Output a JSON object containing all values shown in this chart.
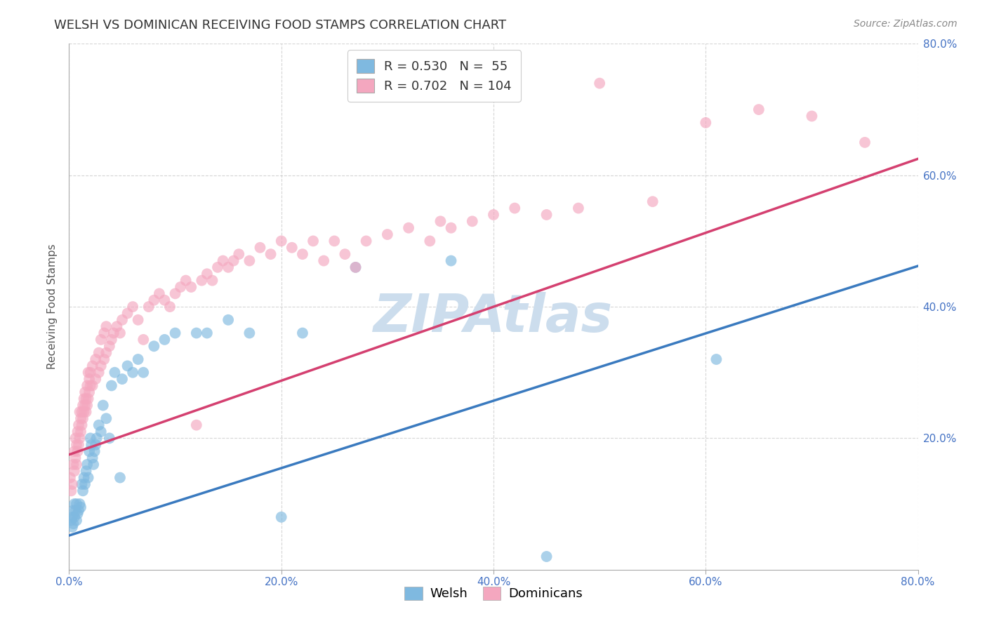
{
  "title": "WELSH VS DOMINICAN RECEIVING FOOD STAMPS CORRELATION CHART",
  "source": "Source: ZipAtlas.com",
  "ylabel": "Receiving Food Stamps",
  "watermark": "ZIPAtlas",
  "welsh": {
    "R": 0.53,
    "N": 55,
    "scatter_color": "#7fb9e0",
    "line_color": "#3a7abf",
    "line_x0": 0.0,
    "line_y0": 0.052,
    "line_x1": 0.8,
    "line_y1": 0.462,
    "points_x": [
      0.002,
      0.003,
      0.003,
      0.004,
      0.004,
      0.005,
      0.005,
      0.006,
      0.007,
      0.007,
      0.008,
      0.009,
      0.01,
      0.011,
      0.012,
      0.013,
      0.014,
      0.015,
      0.016,
      0.017,
      0.018,
      0.019,
      0.02,
      0.021,
      0.022,
      0.023,
      0.024,
      0.025,
      0.026,
      0.028,
      0.03,
      0.032,
      0.035,
      0.038,
      0.04,
      0.043,
      0.048,
      0.05,
      0.055,
      0.06,
      0.065,
      0.07,
      0.08,
      0.09,
      0.1,
      0.12,
      0.13,
      0.15,
      0.17,
      0.2,
      0.22,
      0.27,
      0.36,
      0.61,
      0.45
    ],
    "points_y": [
      0.075,
      0.08,
      0.065,
      0.07,
      0.09,
      0.08,
      0.1,
      0.09,
      0.1,
      0.075,
      0.085,
      0.09,
      0.1,
      0.095,
      0.13,
      0.12,
      0.14,
      0.13,
      0.15,
      0.16,
      0.14,
      0.18,
      0.2,
      0.19,
      0.17,
      0.16,
      0.18,
      0.19,
      0.2,
      0.22,
      0.21,
      0.25,
      0.23,
      0.2,
      0.28,
      0.3,
      0.14,
      0.29,
      0.31,
      0.3,
      0.32,
      0.3,
      0.34,
      0.35,
      0.36,
      0.36,
      0.36,
      0.38,
      0.36,
      0.08,
      0.36,
      0.46,
      0.47,
      0.32,
      0.02
    ]
  },
  "dominican": {
    "R": 0.702,
    "N": 104,
    "scatter_color": "#f4a7bf",
    "line_color": "#d44070",
    "line_x0": 0.0,
    "line_y0": 0.175,
    "line_x1": 0.8,
    "line_y1": 0.625,
    "points_x": [
      0.001,
      0.002,
      0.003,
      0.004,
      0.005,
      0.005,
      0.006,
      0.006,
      0.007,
      0.007,
      0.008,
      0.008,
      0.009,
      0.009,
      0.01,
      0.01,
      0.011,
      0.011,
      0.012,
      0.012,
      0.013,
      0.013,
      0.014,
      0.014,
      0.015,
      0.015,
      0.016,
      0.016,
      0.017,
      0.017,
      0.018,
      0.018,
      0.019,
      0.019,
      0.02,
      0.02,
      0.022,
      0.022,
      0.025,
      0.025,
      0.028,
      0.028,
      0.03,
      0.03,
      0.033,
      0.033,
      0.035,
      0.035,
      0.038,
      0.04,
      0.042,
      0.045,
      0.048,
      0.05,
      0.055,
      0.06,
      0.065,
      0.07,
      0.075,
      0.08,
      0.085,
      0.09,
      0.095,
      0.1,
      0.105,
      0.11,
      0.115,
      0.12,
      0.125,
      0.13,
      0.135,
      0.14,
      0.145,
      0.15,
      0.155,
      0.16,
      0.17,
      0.18,
      0.19,
      0.2,
      0.21,
      0.22,
      0.23,
      0.24,
      0.25,
      0.26,
      0.27,
      0.28,
      0.3,
      0.32,
      0.34,
      0.35,
      0.36,
      0.38,
      0.4,
      0.42,
      0.45,
      0.48,
      0.5,
      0.55,
      0.6,
      0.65,
      0.7,
      0.75
    ],
    "points_y": [
      0.14,
      0.12,
      0.13,
      0.16,
      0.15,
      0.18,
      0.17,
      0.2,
      0.16,
      0.19,
      0.18,
      0.21,
      0.19,
      0.22,
      0.2,
      0.24,
      0.21,
      0.23,
      0.22,
      0.24,
      0.23,
      0.25,
      0.24,
      0.26,
      0.25,
      0.27,
      0.24,
      0.26,
      0.25,
      0.28,
      0.26,
      0.3,
      0.27,
      0.29,
      0.28,
      0.3,
      0.28,
      0.31,
      0.29,
      0.32,
      0.3,
      0.33,
      0.31,
      0.35,
      0.32,
      0.36,
      0.33,
      0.37,
      0.34,
      0.35,
      0.36,
      0.37,
      0.36,
      0.38,
      0.39,
      0.4,
      0.38,
      0.35,
      0.4,
      0.41,
      0.42,
      0.41,
      0.4,
      0.42,
      0.43,
      0.44,
      0.43,
      0.22,
      0.44,
      0.45,
      0.44,
      0.46,
      0.47,
      0.46,
      0.47,
      0.48,
      0.47,
      0.49,
      0.48,
      0.5,
      0.49,
      0.48,
      0.5,
      0.47,
      0.5,
      0.48,
      0.46,
      0.5,
      0.51,
      0.52,
      0.5,
      0.53,
      0.52,
      0.53,
      0.54,
      0.55,
      0.54,
      0.55,
      0.74,
      0.56,
      0.68,
      0.7,
      0.69,
      0.65
    ]
  },
  "xlim": [
    0.0,
    0.8
  ],
  "ylim": [
    0.0,
    0.8
  ],
  "xticks": [
    0.0,
    0.2,
    0.4,
    0.6,
    0.8
  ],
  "yticks": [
    0.2,
    0.4,
    0.6,
    0.8
  ],
  "grid_color": "#cccccc",
  "bg_color": "#ffffff",
  "title_fontsize": 13,
  "axis_label_fontsize": 11,
  "tick_fontsize": 11,
  "legend_fontsize": 13,
  "source_fontsize": 10,
  "watermark_color": "#ccdded",
  "watermark_fontsize": 54,
  "marker_size": 130,
  "marker_alpha": 0.65
}
